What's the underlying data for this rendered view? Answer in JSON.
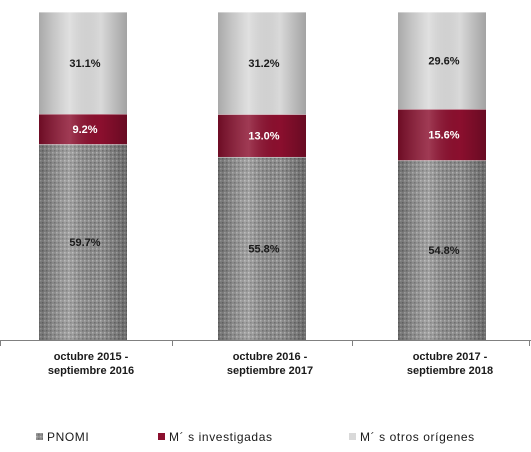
{
  "chart_data": {
    "type": "bar",
    "stacked": true,
    "percent": true,
    "categories": [
      [
        "octubre 2015 -",
        "septiembre 2016"
      ],
      [
        "octubre 2016 -",
        "septiembre 2017"
      ],
      [
        "octubre 2017 -",
        "septiembre 2018"
      ]
    ],
    "series": [
      {
        "name": "PNOMI",
        "values": [
          59.7,
          55.8,
          54.8
        ],
        "labels": [
          "59.7%",
          "55.8%",
          "54.8%"
        ],
        "color": "#9a9a9a",
        "pattern": "dots"
      },
      {
        "name": "M´ s investigadas",
        "values": [
          9.2,
          13.0,
          15.6
        ],
        "labels": [
          "9.2%",
          "13.0%",
          "15.6%"
        ],
        "color": "#8b0f2e"
      },
      {
        "name": "M´ s otros orígenes",
        "values": [
          31.1,
          31.2,
          29.6
        ],
        "labels": [
          "31.1%",
          "31.2%",
          "29.6%"
        ],
        "color": "#d9d9d9"
      }
    ],
    "ylim": [
      0,
      100
    ],
    "grid": false,
    "legend_position": "bottom"
  }
}
